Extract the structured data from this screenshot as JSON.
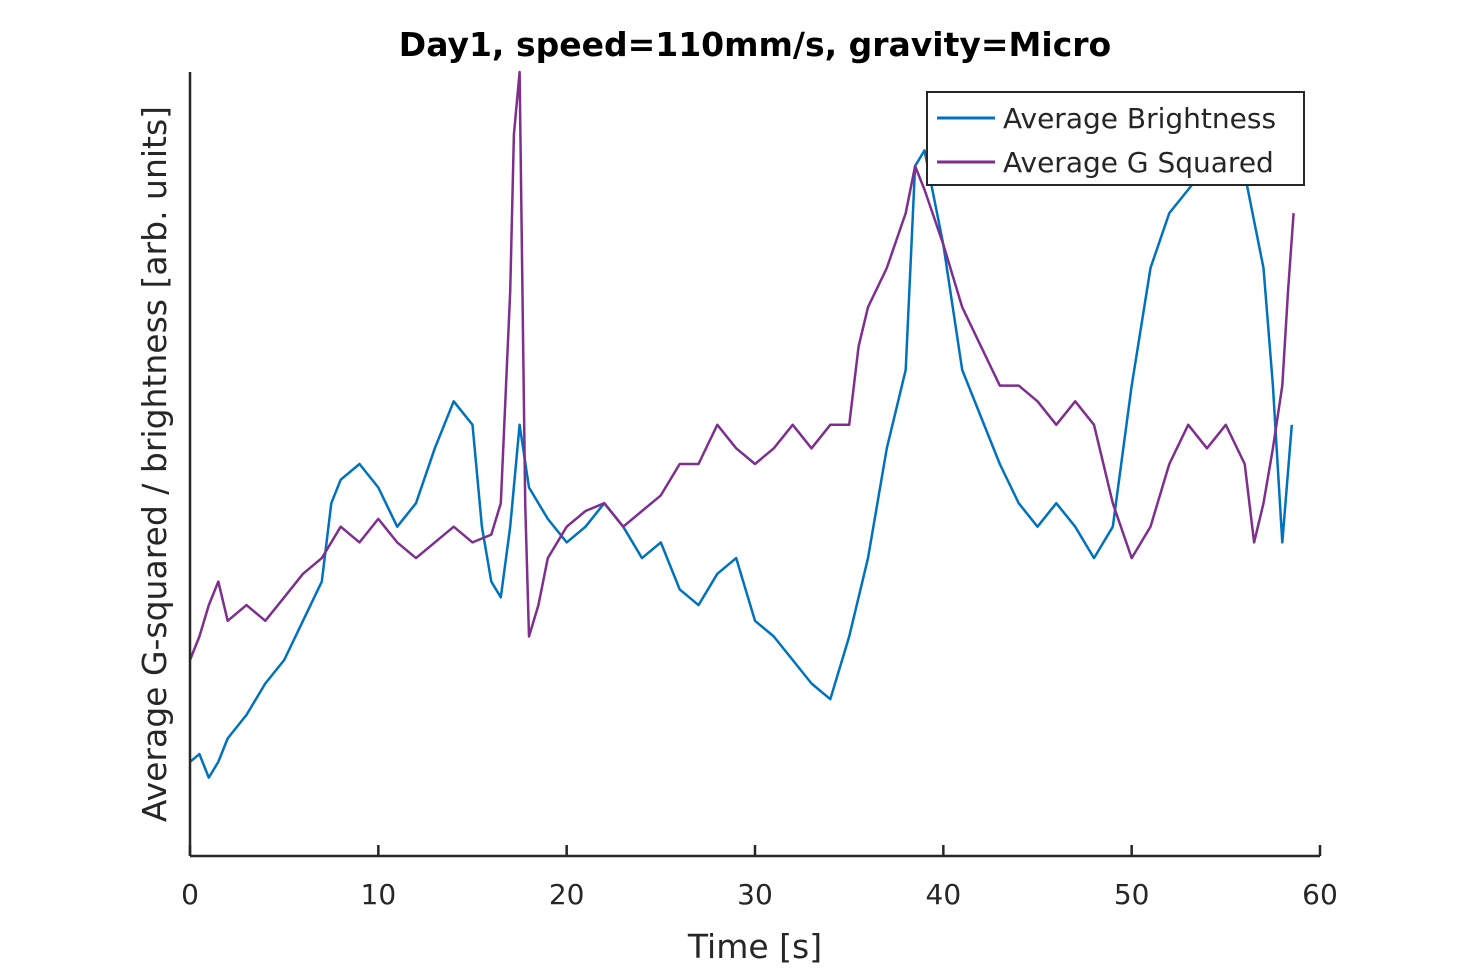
{
  "chart_data": {
    "type": "line",
    "title": "Day1, speed=110mm/s, gravity=Micro",
    "xlabel": "Time [s]",
    "ylabel": "Average G-squared / brightness [arb. units]",
    "xlim": [
      0,
      60
    ],
    "ylim": [
      0,
      1
    ],
    "x_ticks": [
      0,
      10,
      20,
      30,
      40,
      50,
      60
    ],
    "x_tick_labels": [
      "0",
      "10",
      "20",
      "30",
      "40",
      "50",
      "60"
    ],
    "y_tick_labels": [],
    "grid": false,
    "legend_position": "top-right",
    "series": [
      {
        "name": "Average Brightness",
        "color": "#0072BD",
        "x": [
          0,
          0.5,
          1,
          1.5,
          2,
          3,
          4,
          5,
          6,
          7,
          7.5,
          8,
          9,
          10,
          11,
          12,
          13,
          14,
          15,
          15.5,
          16,
          16.5,
          17,
          17.5,
          18,
          19,
          20,
          21,
          22,
          23,
          24,
          25,
          26,
          27,
          28,
          29,
          30,
          31,
          32,
          33,
          34,
          35,
          36,
          37,
          38,
          38.5,
          39,
          40,
          41,
          42,
          43,
          44,
          45,
          46,
          47,
          48,
          49,
          50,
          51,
          52,
          53,
          54,
          55,
          56,
          57,
          57.5,
          58,
          58.5
        ],
        "values": [
          0.12,
          0.13,
          0.1,
          0.12,
          0.15,
          0.18,
          0.22,
          0.25,
          0.3,
          0.35,
          0.45,
          0.48,
          0.5,
          0.47,
          0.42,
          0.45,
          0.52,
          0.58,
          0.55,
          0.42,
          0.35,
          0.33,
          0.42,
          0.55,
          0.47,
          0.43,
          0.4,
          0.42,
          0.45,
          0.42,
          0.38,
          0.4,
          0.34,
          0.32,
          0.36,
          0.38,
          0.3,
          0.28,
          0.25,
          0.22,
          0.2,
          0.28,
          0.38,
          0.52,
          0.62,
          0.88,
          0.9,
          0.78,
          0.62,
          0.56,
          0.5,
          0.45,
          0.42,
          0.45,
          0.42,
          0.38,
          0.42,
          0.6,
          0.75,
          0.82,
          0.85,
          0.88,
          0.86,
          0.87,
          0.75,
          0.6,
          0.4,
          0.55
        ]
      },
      {
        "name": "Average G Squared",
        "color": "#7E2F8E",
        "x": [
          0,
          0.5,
          1,
          1.5,
          2,
          3,
          4,
          5,
          6,
          7,
          8,
          9,
          10,
          11,
          12,
          13,
          14,
          15,
          16,
          16.5,
          17,
          17.2,
          17.5,
          17.8,
          18,
          18.5,
          19,
          20,
          21,
          22,
          23,
          24,
          25,
          26,
          27,
          28,
          29,
          30,
          31,
          32,
          33,
          34,
          35,
          35.5,
          36,
          37,
          38,
          38.5,
          39,
          40,
          41,
          42,
          43,
          44,
          45,
          46,
          47,
          48,
          49,
          50,
          51,
          52,
          53,
          54,
          55,
          56,
          56.5,
          57,
          57.5,
          58,
          58.3,
          58.6
        ],
        "values": [
          0.25,
          0.28,
          0.32,
          0.35,
          0.3,
          0.32,
          0.3,
          0.33,
          0.36,
          0.38,
          0.42,
          0.4,
          0.43,
          0.4,
          0.38,
          0.4,
          0.42,
          0.4,
          0.41,
          0.45,
          0.72,
          0.92,
          1.0,
          0.45,
          0.28,
          0.32,
          0.38,
          0.42,
          0.44,
          0.45,
          0.42,
          0.44,
          0.46,
          0.5,
          0.5,
          0.55,
          0.52,
          0.5,
          0.52,
          0.55,
          0.52,
          0.55,
          0.55,
          0.65,
          0.7,
          0.75,
          0.82,
          0.88,
          0.85,
          0.78,
          0.7,
          0.65,
          0.6,
          0.6,
          0.58,
          0.55,
          0.58,
          0.55,
          0.45,
          0.38,
          0.42,
          0.5,
          0.55,
          0.52,
          0.55,
          0.5,
          0.4,
          0.45,
          0.52,
          0.6,
          0.72,
          0.82
        ]
      }
    ]
  }
}
